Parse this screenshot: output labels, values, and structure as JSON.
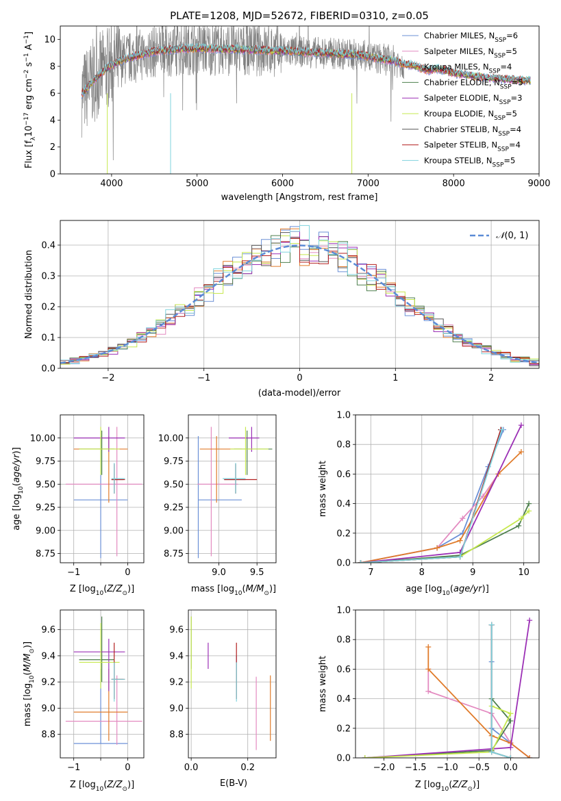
{
  "title": "PLATE=1208, MJD=52672, FIBERID=0310, z=0.05",
  "colors": {
    "Chabrier MILES": "#6a8fd6",
    "Salpeter MILES": "#e38ac0",
    "Kroupa MILES": "#e07b2a",
    "Chabrier ELODIE": "#4d7f4d",
    "Salpeter ELODIE": "#9b2fb5",
    "Kroupa ELODIE": "#c6e84d",
    "Chabrier STELIB": "#555555",
    "Salpeter STELIB": "#b21e1e",
    "Kroupa STELIB": "#7fd3dd",
    "data": "#808080",
    "normal": "#5b8bd6"
  },
  "chart_data": [
    {
      "id": "spectrum",
      "type": "line",
      "xlabel": "wavelength [Angstrom, rest frame]",
      "ylabel": "Flux [f_λ10^-17 erg cm^-2 s^-1 A^-1]",
      "xlim": [
        3400,
        9000
      ],
      "ylim": [
        0,
        11
      ],
      "xticks": [
        4000,
        5000,
        6000,
        7000,
        8000,
        9000
      ],
      "yticks": [
        0,
        2,
        4,
        6,
        8,
        10
      ],
      "grid": false,
      "legend_position": "right",
      "legend": [
        {
          "label": "Chabrier MILES, N",
          "sub": "SSP",
          "tail": "=6"
        },
        {
          "label": "Salpeter MILES, N",
          "sub": "SSP",
          "tail": "=5"
        },
        {
          "label": "Kroupa MILES, N",
          "sub": "SSP",
          "tail": "=4"
        },
        {
          "label": "Chabrier ELODIE, N",
          "sub": "SSP",
          "tail": "=5"
        },
        {
          "label": "Salpeter ELODIE, N",
          "sub": "SSP",
          "tail": "=3"
        },
        {
          "label": "Kroupa ELODIE, N",
          "sub": "SSP",
          "tail": "=5"
        },
        {
          "label": "Chabrier STELIB, N",
          "sub": "SSP",
          "tail": "=4"
        },
        {
          "label": "Salpeter STELIB, N",
          "sub": "SSP",
          "tail": "=4"
        },
        {
          "label": "Kroupa STELIB, N",
          "sub": "SSP",
          "tail": "=5"
        }
      ],
      "model_continuum": {
        "x": [
          3650,
          3700,
          3800,
          3950,
          4100,
          4300,
          4500,
          4800,
          5000,
          5200,
          5500,
          5800,
          6000,
          6300,
          6600,
          6900,
          7100,
          7300,
          7400,
          7500,
          7600,
          7700,
          7800,
          7900,
          8000,
          8200,
          8400,
          8600,
          8800
        ],
        "y": [
          5.9,
          6.3,
          7.0,
          7.9,
          8.4,
          8.8,
          9.1,
          9.3,
          9.35,
          9.3,
          9.25,
          9.2,
          9.15,
          9.05,
          8.95,
          8.85,
          8.6,
          8.4,
          8.2,
          8.1,
          7.9,
          7.7,
          7.85,
          7.7,
          7.5,
          7.3,
          7.15,
          7.05,
          6.95
        ]
      },
      "data_range": [
        3650,
        7420
      ]
    },
    {
      "id": "residuals",
      "type": "bar",
      "xlabel": "(data-model)/error",
      "ylabel": "Normed distribution",
      "xlim": [
        -2.5,
        2.5
      ],
      "ylim": [
        0,
        0.48
      ],
      "xticks": [
        -2,
        -1,
        0,
        1,
        2
      ],
      "yticks": [
        0.0,
        0.1,
        0.2,
        0.3,
        0.4
      ],
      "grid": true,
      "legend_position": "top-right",
      "legend_label": "N(0,1)",
      "bin_width": 0.1
    },
    {
      "id": "age_vs_Z",
      "type": "scatter",
      "xlabel": "Z [log10(Z/Z_sun)]",
      "ylabel": "age [log10(age/yr)]",
      "xlim": [
        -1.25,
        0.3
      ],
      "ylim": [
        8.65,
        10.25
      ],
      "xticks": [
        -1,
        -0.5,
        0
      ],
      "xticklabels": [
        "−1",
        "",
        "0"
      ],
      "yticks": [
        8.75,
        9.0,
        9.25,
        9.5,
        9.75,
        10.0
      ],
      "grid": true
    },
    {
      "id": "age_vs_mass",
      "type": "scatter",
      "xlabel": "mass [log10(M/M_sun)]",
      "ylabel": "",
      "xlim": [
        8.6,
        9.75
      ],
      "ylim": [
        8.65,
        10.25
      ],
      "xticks": [
        9.0,
        9.5
      ],
      "yticks": [
        8.75,
        9.0,
        9.25,
        9.5,
        9.75,
        10.0
      ],
      "grid": true
    },
    {
      "id": "mw_vs_age",
      "type": "line",
      "xlabel": "age [log10(age/yr)]",
      "ylabel": "mass weight",
      "xlim": [
        6.7,
        10.3
      ],
      "ylim": [
        0,
        1.0
      ],
      "xticks": [
        7,
        8,
        9,
        10
      ],
      "yticks": [
        0.0,
        0.2,
        0.4,
        0.6,
        0.8,
        1.0
      ],
      "grid": true
    },
    {
      "id": "mass_vs_Z",
      "type": "scatter",
      "xlabel": "Z [log10(Z/Z_sun)]",
      "ylabel": "mass [log10(M/M_sun)]",
      "xlim": [
        -1.25,
        0.3
      ],
      "ylim": [
        8.62,
        9.75
      ],
      "xticks": [
        -1,
        -0.5,
        0
      ],
      "xticklabels": [
        "−1",
        "",
        "0"
      ],
      "yticks": [
        8.8,
        9.0,
        9.2,
        9.4,
        9.6
      ],
      "grid": true
    },
    {
      "id": "mass_vs_ebv",
      "type": "scatter",
      "xlabel": "E(B-V)",
      "ylabel": "",
      "xlim": [
        -0.01,
        0.3
      ],
      "ylim": [
        8.62,
        9.75
      ],
      "xticks": [
        0.0,
        0.2
      ],
      "yticks": [
        8.8,
        9.0,
        9.2,
        9.4,
        9.6
      ],
      "grid": true
    },
    {
      "id": "mw_vs_Z",
      "type": "line",
      "xlabel": "Z [log10(Z/Z_sun)]",
      "ylabel": "mass weight",
      "xlim": [
        -2.45,
        0.45
      ],
      "ylim": [
        0,
        1.0
      ],
      "xticks": [
        -2.0,
        -1.5,
        -1.0,
        -0.5,
        0.0
      ],
      "yticks": [
        0.0,
        0.2,
        0.4,
        0.6,
        0.8,
        1.0
      ],
      "grid": true
    }
  ],
  "models": [
    {
      "name": "Chabrier MILES",
      "Z": -0.5,
      "Zlo": -1.0,
      "Zhi": 0.0,
      "age": 9.33,
      "ageLo": 8.7,
      "ageHi": 10.02,
      "mass": 8.73,
      "massLo": 8.73,
      "massHi": 9.3,
      "ebv": 0.16,
      "ebvLo": 9.15,
      "ebvHi": 9.4,
      "sfh_age": [
        6.8,
        8.3,
        8.8,
        9.3,
        9.6
      ],
      "sfh_w": [
        0.0,
        0.1,
        0.2,
        0.65,
        0.9
      ],
      "sfh_Z": [
        0.3,
        0.0,
        -0.3,
        -0.3,
        -0.3
      ]
    },
    {
      "name": "Salpeter MILES",
      "Z": -0.2,
      "Zlo": -1.15,
      "Zhi": 0.27,
      "age": 9.5,
      "ageLo": 8.72,
      "ageHi": 10.12,
      "mass": 8.9,
      "massLo": 8.72,
      "massHi": 9.25,
      "ebv": 0.23,
      "ebvLo": 8.68,
      "ebvHi": 9.24,
      "sfh_age": [
        6.8,
        8.3,
        8.8,
        9.2,
        9.5
      ],
      "sfh_w": [
        0.0,
        0.1,
        0.3,
        0.45,
        0.6
      ],
      "sfh_Z": [
        0.3,
        0.0,
        -0.3,
        -1.3,
        -1.3
      ]
    },
    {
      "name": "Kroupa MILES",
      "Z": -0.35,
      "Zlo": -1.0,
      "Zhi": 0.0,
      "age": 9.88,
      "ageLo": 9.3,
      "ageHi": 10.02,
      "mass": 8.97,
      "massLo": 8.75,
      "massHi": 9.3,
      "ebv": 0.28,
      "ebvLo": 8.75,
      "ebvHi": 9.25,
      "sfh_age": [
        6.8,
        8.3,
        8.75,
        9.5,
        9.95
      ],
      "sfh_w": [
        0.0,
        0.1,
        0.15,
        0.6,
        0.75
      ],
      "sfh_Z": [
        0.3,
        0.0,
        -0.3,
        -1.3,
        -1.3
      ]
    },
    {
      "name": "Chabrier ELODIE",
      "Z": -0.48,
      "Zlo": -0.9,
      "Zhi": -0.25,
      "age": 9.88,
      "ageLo": 9.6,
      "ageHi": 10.08,
      "mass": 9.37,
      "massLo": 9.2,
      "massHi": 9.7,
      "ebv": 0.0,
      "ebvLo": 9.3,
      "ebvHi": 9.7,
      "sfh_age": [
        6.8,
        8.75,
        9.9,
        10.1
      ],
      "sfh_w": [
        0.0,
        0.05,
        0.25,
        0.4
      ],
      "sfh_Z": [
        -2.3,
        -0.3,
        0.0,
        -0.3
      ]
    },
    {
      "name": "Salpeter ELODIE",
      "Z": -0.35,
      "Zlo": -1.0,
      "Zhi": -0.05,
      "age": 10.0,
      "ageLo": 9.85,
      "ageHi": 10.12,
      "mass": 9.43,
      "massLo": 9.13,
      "massHi": 9.53,
      "ebv": 0.06,
      "ebvLo": 9.3,
      "ebvHi": 9.5,
      "sfh_age": [
        6.8,
        8.75,
        9.95
      ],
      "sfh_w": [
        0.0,
        0.07,
        0.93
      ],
      "sfh_Z": [
        -2.3,
        0.0,
        0.3
      ]
    },
    {
      "name": "Kroupa ELODIE",
      "Z": -0.5,
      "Zlo": -0.9,
      "Zhi": -0.15,
      "age": 9.88,
      "ageLo": 9.6,
      "ageHi": 10.12,
      "mass": 9.35,
      "massLo": 9.15,
      "massHi": 9.65,
      "ebv": 0.0,
      "ebvLo": 9.15,
      "ebvHi": 9.7,
      "sfh_age": [
        6.8,
        8.75,
        9.95,
        10.1
      ],
      "sfh_w": [
        0.0,
        0.04,
        0.3,
        0.35
      ],
      "sfh_Z": [
        -2.3,
        -0.3,
        0.0,
        -0.3
      ]
    },
    {
      "name": "Chabrier STELIB",
      "Z": -0.25,
      "Zlo": -0.3,
      "Zhi": -0.08,
      "age": 9.55,
      "ageLo": 9.4,
      "ageHi": 9.72,
      "mass": 9.22,
      "massLo": 9.07,
      "massHi": 9.35,
      "ebv": 0.16,
      "ebvLo": 9.07,
      "ebvHi": 9.35,
      "sfh_age": [
        6.8,
        8.75,
        9.55
      ],
      "sfh_w": [
        0.0,
        0.04,
        0.9
      ],
      "sfh_Z": [
        0.0,
        -0.3,
        -0.3
      ]
    },
    {
      "name": "Salpeter STELIB",
      "Z": -0.25,
      "Zlo": -0.3,
      "Zhi": -0.05,
      "age": 9.55,
      "ageLo": 9.4,
      "ageHi": 9.72,
      "mass": 9.22,
      "massLo": 9.07,
      "massHi": 9.5,
      "ebv": 0.16,
      "ebvLo": 9.07,
      "ebvHi": 9.5,
      "sfh_age": [
        6.8,
        8.75,
        9.55
      ],
      "sfh_w": [
        0.0,
        0.04,
        0.9
      ],
      "sfh_Z": [
        0.0,
        -0.3,
        -0.3
      ]
    },
    {
      "name": "Kroupa STELIB",
      "Z": -0.25,
      "Zlo": -0.3,
      "Zhi": -0.05,
      "age": 9.56,
      "ageLo": 9.4,
      "ageHi": 9.73,
      "mass": 9.22,
      "massLo": 9.05,
      "massHi": 9.35,
      "ebv": 0.16,
      "ebvLo": 9.05,
      "ebvHi": 9.35,
      "sfh_age": [
        6.8,
        8.75,
        9.57
      ],
      "sfh_w": [
        0.0,
        0.04,
        0.9
      ],
      "sfh_Z": [
        0.0,
        -0.3,
        -0.3
      ]
    }
  ],
  "histogram_profile": {
    "bin_edges_from": -2.5,
    "reference": "normal"
  }
}
